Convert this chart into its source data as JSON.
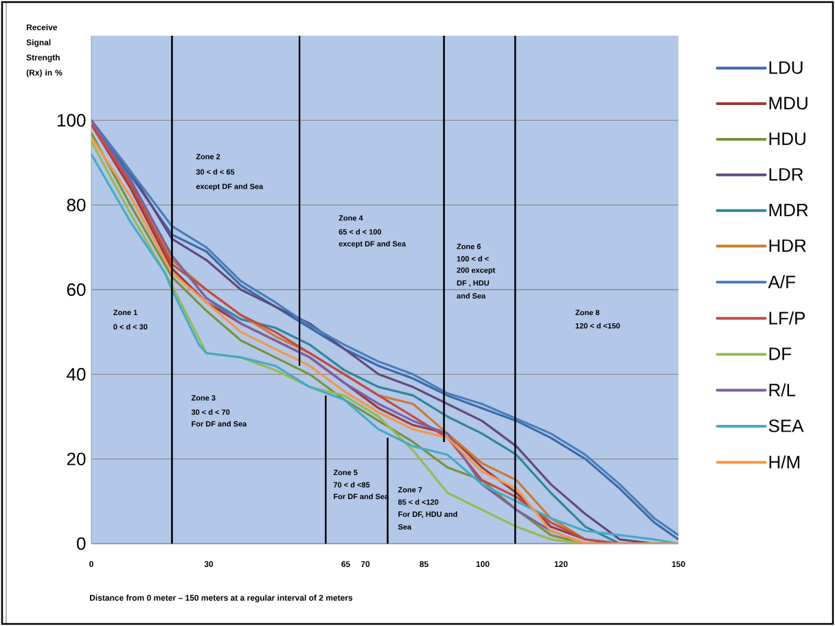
{
  "chart_data": {
    "type": "line",
    "ylabel": "Receive Signal Strength (Rx) in %",
    "xlabel": "Distance from 0 meter – 150 meters at a regular interval of 2 meters",
    "x": [
      0,
      10,
      20.6,
      29.4,
      38.2,
      47,
      55.8,
      64.6,
      73.4,
      82.2,
      91,
      99.8,
      108.6,
      117.4,
      126.2,
      135,
      143.8,
      150
    ],
    "xlim": [
      0,
      150
    ],
    "ylim": [
      0,
      120
    ],
    "xticks": [
      0,
      30,
      65,
      70,
      85,
      100,
      120,
      150
    ],
    "yticks": [
      0,
      20,
      40,
      60,
      80,
      100
    ],
    "grid": "y",
    "legend": "right",
    "series": [
      {
        "name": "LDU",
        "color": "#3c6aa8",
        "values": [
          100,
          87,
          73,
          69,
          61,
          56,
          51,
          46,
          42,
          39,
          35,
          32,
          29,
          25,
          20,
          13,
          5,
          1
        ]
      },
      {
        "name": "MDU",
        "color": "#9e3a38",
        "values": [
          99,
          84,
          65,
          57,
          52,
          48,
          44,
          38,
          32,
          28,
          26,
          18,
          12,
          4,
          1,
          0,
          0,
          0
        ]
      },
      {
        "name": "HDU",
        "color": "#77933c",
        "values": [
          97,
          80,
          63,
          55,
          48,
          44,
          40,
          34,
          29,
          24,
          18,
          15,
          8,
          2,
          0,
          0,
          0,
          0
        ]
      },
      {
        "name": "LDR",
        "color": "#604a7b",
        "values": [
          100,
          88,
          72,
          67,
          60,
          56,
          52,
          46,
          40,
          37,
          33,
          29,
          23,
          14,
          7,
          1,
          0,
          0
        ]
      },
      {
        "name": "MDR",
        "color": "#31859c",
        "values": [
          100,
          86,
          68,
          58,
          53,
          51,
          47,
          41,
          37,
          35,
          30,
          26,
          21,
          12,
          4,
          0,
          0,
          0
        ]
      },
      {
        "name": "HDR",
        "color": "#cc7a30",
        "values": [
          100,
          85,
          67,
          60,
          54,
          49,
          45,
          40,
          35,
          33,
          26,
          19,
          15,
          6,
          1,
          0,
          0,
          0
        ]
      },
      {
        "name": "A/F",
        "color": "#4a7ebb",
        "values": [
          100,
          88,
          75,
          70,
          62,
          57,
          51.5,
          47,
          43,
          40,
          35.5,
          33,
          29.5,
          26,
          21,
          14,
          6,
          2
        ]
      },
      {
        "name": "LF/P",
        "color": "#be4b48",
        "values": [
          99,
          85,
          66,
          60,
          54,
          50,
          45,
          40,
          35,
          30,
          25,
          15,
          11,
          5,
          1,
          0,
          0,
          0
        ]
      },
      {
        "name": "DF",
        "color": "#98b954",
        "values": [
          95,
          78,
          61,
          45,
          44,
          41,
          37,
          35,
          30,
          22,
          12,
          8,
          4,
          1,
          0,
          0,
          0,
          0
        ]
      },
      {
        "name": "R/L",
        "color": "#7d60a0",
        "values": [
          100,
          86,
          68,
          58,
          52,
          48,
          44,
          38,
          33,
          29,
          26,
          14,
          8,
          3,
          0,
          0,
          0,
          0
        ]
      },
      {
        "name": "SEA",
        "color": "#46aac5",
        "x": [
          0,
          10,
          18.8,
          20.6,
          27.5,
          29.4,
          38.2,
          47,
          55.8,
          64.6,
          73.4,
          82.2,
          91,
          99.8,
          108.6,
          117.4,
          126.2,
          135,
          143.8,
          150
        ],
        "values": [
          92,
          76,
          64,
          60,
          47,
          45,
          44,
          42,
          37,
          34,
          27,
          23,
          21,
          14,
          10,
          6,
          3,
          2,
          1,
          0
        ]
      },
      {
        "name": "H/M",
        "color": "#f79646",
        "values": [
          96,
          82,
          64,
          57,
          50,
          46,
          42,
          36,
          31,
          27,
          25,
          17,
          13,
          3,
          0,
          0,
          0,
          0
        ]
      },
      {
        "color": "#000000",
        "x": [
          20.6,
          20.6
        ],
        "values": [
          0,
          120
        ]
      },
      {
        "color": "#000000",
        "x": [
          53.2,
          53.2
        ],
        "values": [
          42,
          120
        ]
      },
      {
        "color": "#000000",
        "x": [
          59.9,
          59.9
        ],
        "values": [
          0,
          35
        ]
      },
      {
        "color": "#000000",
        "x": [
          75.7,
          75.7
        ],
        "values": [
          0,
          25
        ]
      },
      {
        "color": "#000000",
        "x": [
          90.1,
          90.1
        ],
        "values": [
          24,
          120
        ]
      },
      {
        "color": "#000000",
        "x": [
          108.3,
          108.3
        ],
        "values": [
          0,
          120
        ]
      }
    ],
    "annotations": [
      "Zone 1",
      "0 < d < 30",
      "Zone 2",
      "30 < d < 65",
      "except DF and Sea",
      "Zone 3",
      "30 < d < 70",
      "For DF and Sea",
      "Zone 4",
      "65 < d < 100",
      "except DF and Sea",
      "Zone 5",
      "70 < d <85",
      "For DF and Sea",
      "Zone 6",
      "100 < d <",
      "200 except",
      "DF , HDU",
      "and Sea",
      "Zone 7",
      "85 < d <120",
      "For DF, HDU  and",
      "Sea",
      "Zone 8",
      "120 < d <150"
    ]
  }
}
